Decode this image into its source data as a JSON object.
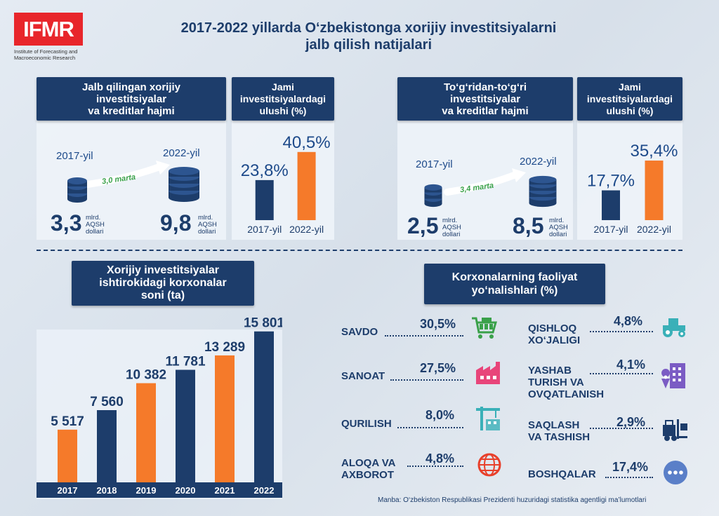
{
  "logo": {
    "text": "IFMR",
    "subtitle_line1": "Institute of Forecasting and",
    "subtitle_line2": "Macroeconomic Research"
  },
  "title_line1": "2017-2022 yillarda O‘zbekistonga xorijiy investitsiyalarni",
  "title_line2": "jalb qilish natijalari",
  "section1": {
    "header_line1": "Jalb qilingan xorijiy",
    "header_line2": "investitsiyalar",
    "header_line3": "va kreditlar hajmi",
    "year_from": "2017-yil",
    "year_to": "2022-yil",
    "growth": "3,0 marta",
    "value_from": "3,3",
    "value_to": "9,8",
    "unit_line1": "mlrd.",
    "unit_line2": "AQSH",
    "unit_line3": "dollari"
  },
  "section2": {
    "header_line1": "Jami",
    "header_line2": "investitsiyalardagi",
    "header_line3": "ulushi (%)"
  },
  "section3": {
    "header_line1": "To‘g‘ridan-to‘g‘ri",
    "header_line2": "investitsiyalar",
    "header_line3": "va kreditlar hajmi",
    "year_from": "2017-yil",
    "year_to": "2022-yil",
    "growth": "3,4 marta",
    "value_from": "2,5",
    "value_to": "8,5",
    "unit_line1": "mlrd.",
    "unit_line2": "AQSH",
    "unit_line3": "dollari"
  },
  "section4": {
    "header_line1": "Jami",
    "header_line2": "investitsiyalardagi",
    "header_line3": "ulushi (%)"
  },
  "section5": {
    "header_line1": "Xorijiy investitsiyalar",
    "header_line2": "ishtirokidagi korxonalar",
    "header_line3": "soni (ta)"
  },
  "section6": {
    "header_line1": "Korxonalarning faoliyat",
    "header_line2": "yo‘nalishlari (%)"
  },
  "activities": [
    {
      "name_line1": "SAVDO",
      "name_line2": "",
      "name_line3": "",
      "pct": "30,5%",
      "icon": "shopping-cart-icon",
      "color": "#3aa14a"
    },
    {
      "name_line1": "SANOAT",
      "name_line2": "",
      "name_line3": "",
      "pct": "27,5%",
      "icon": "factory-icon",
      "color": "#e8457a"
    },
    {
      "name_line1": "QURILISH",
      "name_line2": "",
      "name_line3": "",
      "pct": "8,0%",
      "icon": "crane-icon",
      "color": "#3ab0b8"
    },
    {
      "name_line1": "ALOQA VA",
      "name_line2": "AXBOROT",
      "name_line3": "",
      "pct": "4,8%",
      "icon": "globe-network-icon",
      "color": "#e8402b"
    },
    {
      "name_line1": "QISHLOQ",
      "name_line2": "XO‘JALIGI",
      "name_line3": "",
      "pct": "4,8%",
      "icon": "tractor-icon",
      "color": "#3ab0b8"
    },
    {
      "name_line1": "YASHAB",
      "name_line2": "TURISH VA",
      "name_line3": "OVQATLANISH",
      "pct": "4,1%",
      "icon": "hotel-icon",
      "color": "#7b5cc4"
    },
    {
      "name_line1": "SAQLASH",
      "name_line2": "VA TASHISH",
      "name_line3": "",
      "pct": "2,9%",
      "icon": "forklift-icon",
      "color": "#1d3d6b"
    },
    {
      "name_line1": "BOSHQALAR",
      "name_line2": "",
      "name_line3": "",
      "pct": "17,4%",
      "icon": "more-dots-icon",
      "color": "#5a7fc8"
    }
  ],
  "source": "Manba: O‘zbekiston Respublikasi Prezidenti huzuridagi statistika agentligi ma’lumotlari",
  "colors": {
    "navy": "#1d3d6b",
    "orange": "#f57a2a"
  },
  "chart_data": [
    {
      "type": "bar",
      "categories": [
        "2017-yil",
        "2022-yil"
      ],
      "values": [
        23.8,
        40.5
      ],
      "value_labels": [
        "23,8%",
        "40,5%"
      ],
      "colors": [
        "#1d3d6b",
        "#f57a2a"
      ],
      "title": ""
    },
    {
      "type": "bar",
      "categories": [
        "2017-yil",
        "2022-yil"
      ],
      "values": [
        17.7,
        35.4
      ],
      "value_labels": [
        "17,7%",
        "35,4%"
      ],
      "colors": [
        "#1d3d6b",
        "#f57a2a"
      ],
      "title": ""
    },
    {
      "type": "bar",
      "categories": [
        "2017",
        "2018",
        "2019",
        "2020",
        "2021",
        "2022"
      ],
      "values": [
        5517,
        7560,
        10382,
        11781,
        13289,
        15801
      ],
      "value_labels": [
        "5 517",
        "7 560",
        "10 382",
        "11 781",
        "13 289",
        "15 801"
      ],
      "colors": [
        "#f57a2a",
        "#1d3d6b",
        "#f57a2a",
        "#1d3d6b",
        "#f57a2a",
        "#1d3d6b"
      ],
      "title": ""
    }
  ]
}
